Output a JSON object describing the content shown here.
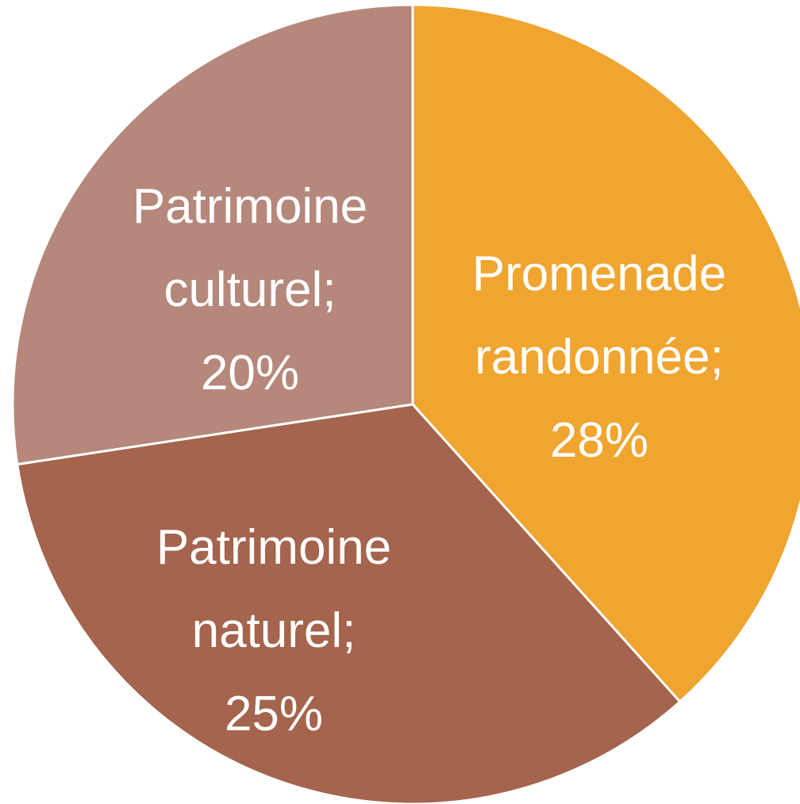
{
  "chart_data": {
    "type": "pie",
    "categories": [
      "Promenade randonnée",
      "Patrimoine naturel",
      "Patrimoine culturel"
    ],
    "values": [
      28,
      25,
      20
    ],
    "value_labels": [
      "28%",
      "25%",
      "20%"
    ],
    "label_separator": ";",
    "colors": [
      "#f0a530",
      "#a4644d",
      "#b5887b"
    ]
  }
}
